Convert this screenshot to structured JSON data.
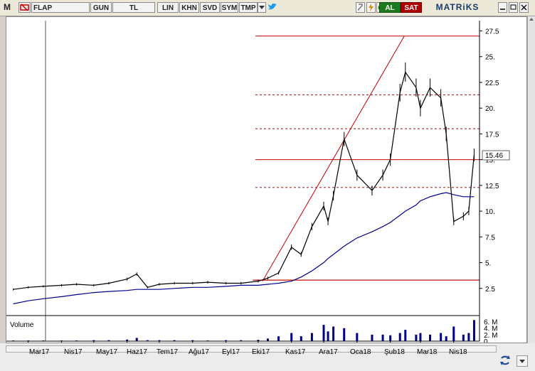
{
  "toolbar": {
    "m_label": "M",
    "symbol": "FLAP",
    "period": "GUN",
    "currency": "TL",
    "scale": "LIN",
    "btn_khn": "KHN",
    "btn_svd": "SVD",
    "btn_sym": "SYM",
    "btn_tmp": "TMP",
    "buy_label": "AL",
    "sell_label": "SAT",
    "brand": "MATRiKS"
  },
  "colors": {
    "price": "#000000",
    "moving_average": "#00008b",
    "fib_lines": "#c00000",
    "volume": "#00008b",
    "buy_bg": "#1f7a1f",
    "sell_bg": "#b00000"
  },
  "chart_data": {
    "type": "line",
    "title": "",
    "xlabel": "",
    "ylabel": "",
    "y_axis_position": "right",
    "ylim": [
      0,
      28.5
    ],
    "yticks": [
      2.5,
      5,
      7.5,
      10,
      12.5,
      15,
      17.5,
      20,
      22.5,
      25,
      27.5
    ],
    "ytick_labels": [
      "2.5",
      "5.",
      "7.5",
      "10.",
      "12.5",
      "15.",
      "17.5",
      "20.",
      "22.5",
      "25.",
      "27.5"
    ],
    "last_price_label": "15.46",
    "last_price": 15.46,
    "x_months": [
      "Mar17",
      "Nis17",
      "May17",
      "Haz17",
      "Tem17",
      "Ağu17",
      "Eyl17",
      "Eki17",
      "Kas17",
      "Ara17",
      "Oca18",
      "Şub18",
      "Mar18",
      "Nis18"
    ],
    "x": [
      "2017-02-15",
      "2017-03-01",
      "2017-03-15",
      "2017-04-01",
      "2017-04-15",
      "2017-05-01",
      "2017-05-15",
      "2017-06-01",
      "2017-06-10",
      "2017-06-20",
      "2017-07-01",
      "2017-07-15",
      "2017-08-01",
      "2017-08-15",
      "2017-09-01",
      "2017-09-15",
      "2017-10-01",
      "2017-10-10",
      "2017-10-20",
      "2017-11-01",
      "2017-11-10",
      "2017-11-20",
      "2017-12-01",
      "2017-12-05",
      "2017-12-10",
      "2017-12-20",
      "2018-01-01",
      "2018-01-15",
      "2018-01-25",
      "2018-02-01",
      "2018-02-10",
      "2018-02-15",
      "2018-02-25",
      "2018-03-01",
      "2018-03-10",
      "2018-03-20",
      "2018-03-25",
      "2018-04-01",
      "2018-04-10",
      "2018-04-15",
      "2018-04-20"
    ],
    "series": [
      {
        "values": [
          2.4,
          2.6,
          2.7,
          2.8,
          2.9,
          2.8,
          3.0,
          3.4,
          3.9,
          2.6,
          2.9,
          3.0,
          3.0,
          3.1,
          3.0,
          3.0,
          3.2,
          3.5,
          4.0,
          6.5,
          5.8,
          8.5,
          10.5,
          9.0,
          11.5,
          17.0,
          13.5,
          12.0,
          13.5,
          15.0,
          21.5,
          23.5,
          22.0,
          20.0,
          22.0,
          21.0,
          17.5,
          9.0,
          9.5,
          10.0,
          15.46
        ]
      },
      {
        "values": [
          1.0,
          1.3,
          1.5,
          1.7,
          1.9,
          2.1,
          2.2,
          2.3,
          2.4,
          2.4,
          2.4,
          2.5,
          2.6,
          2.6,
          2.7,
          2.8,
          2.8,
          2.9,
          3.0,
          3.2,
          3.6,
          4.2,
          5.0,
          5.4,
          5.8,
          6.6,
          7.4,
          8.0,
          8.5,
          8.9,
          9.6,
          10.0,
          10.6,
          11.0,
          11.4,
          11.7,
          11.8,
          11.6,
          11.4,
          11.4,
          11.4
        ]
      }
    ],
    "fibonacci_levels": [
      27.0,
      21.3,
      18.0,
      15.0,
      12.3,
      3.3
    ],
    "trend_line": {
      "from": [
        "2017-10-05",
        3.2
      ],
      "to": [
        "2018-02-14",
        27.0
      ]
    },
    "volume": {
      "label": "Volume",
      "ytick_labels": [
        "6. M",
        "4. M",
        "2. M",
        "0"
      ],
      "ylim": [
        0,
        7
      ],
      "values": [
        0.2,
        0.2,
        0.2,
        0.2,
        0.2,
        0.3,
        0.3,
        0.5,
        1.0,
        0.3,
        0.3,
        0.3,
        0.3,
        0.2,
        0.3,
        0.3,
        0.4,
        0.8,
        1.5,
        2.5,
        1.5,
        2.5,
        5.0,
        3.0,
        4.5,
        4.0,
        2.5,
        2.0,
        2.0,
        1.8,
        2.5,
        3.5,
        2.0,
        2.5,
        2.0,
        2.5,
        1.5,
        4.5,
        2.0,
        2.5,
        6.5
      ]
    }
  }
}
